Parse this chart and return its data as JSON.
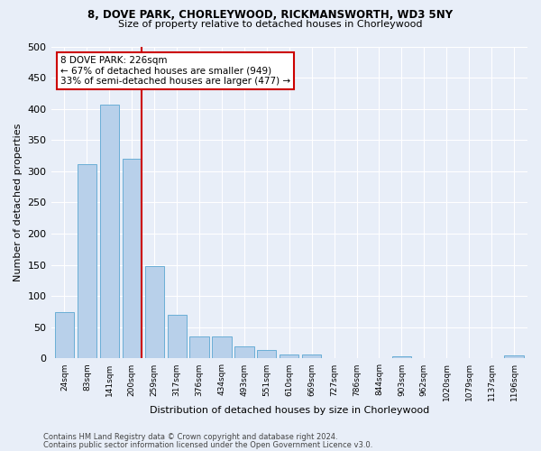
{
  "title_line1": "8, DOVE PARK, CHORLEYWOOD, RICKMANSWORTH, WD3 5NY",
  "title_line2": "Size of property relative to detached houses in Chorleywood",
  "xlabel": "Distribution of detached houses by size in Chorleywood",
  "ylabel": "Number of detached properties",
  "categories": [
    "24sqm",
    "83sqm",
    "141sqm",
    "200sqm",
    "259sqm",
    "317sqm",
    "376sqm",
    "434sqm",
    "493sqm",
    "551sqm",
    "610sqm",
    "669sqm",
    "727sqm",
    "786sqm",
    "844sqm",
    "903sqm",
    "962sqm",
    "1020sqm",
    "1079sqm",
    "1137sqm",
    "1196sqm"
  ],
  "values": [
    75,
    312,
    407,
    320,
    148,
    70,
    36,
    36,
    20,
    13,
    6,
    6,
    0,
    0,
    0,
    4,
    0,
    0,
    0,
    0,
    5
  ],
  "bar_color": "#b8d0ea",
  "bar_edge_color": "#6aaed6",
  "ref_line_x": 3.44,
  "ref_line_label": "8 DOVE PARK: 226sqm",
  "annotation_line1": "← 67% of detached houses are smaller (949)",
  "annotation_line2": "33% of semi-detached houses are larger (477) →",
  "annotation_box_facecolor": "#ffffff",
  "annotation_box_edgecolor": "#cc0000",
  "ref_line_color": "#cc0000",
  "ylim": [
    0,
    500
  ],
  "yticks": [
    0,
    50,
    100,
    150,
    200,
    250,
    300,
    350,
    400,
    450,
    500
  ],
  "footer_line1": "Contains HM Land Registry data © Crown copyright and database right 2024.",
  "footer_line2": "Contains public sector information licensed under the Open Government Licence v3.0.",
  "bg_color": "#e8eef8",
  "grid_color": "#ffffff"
}
